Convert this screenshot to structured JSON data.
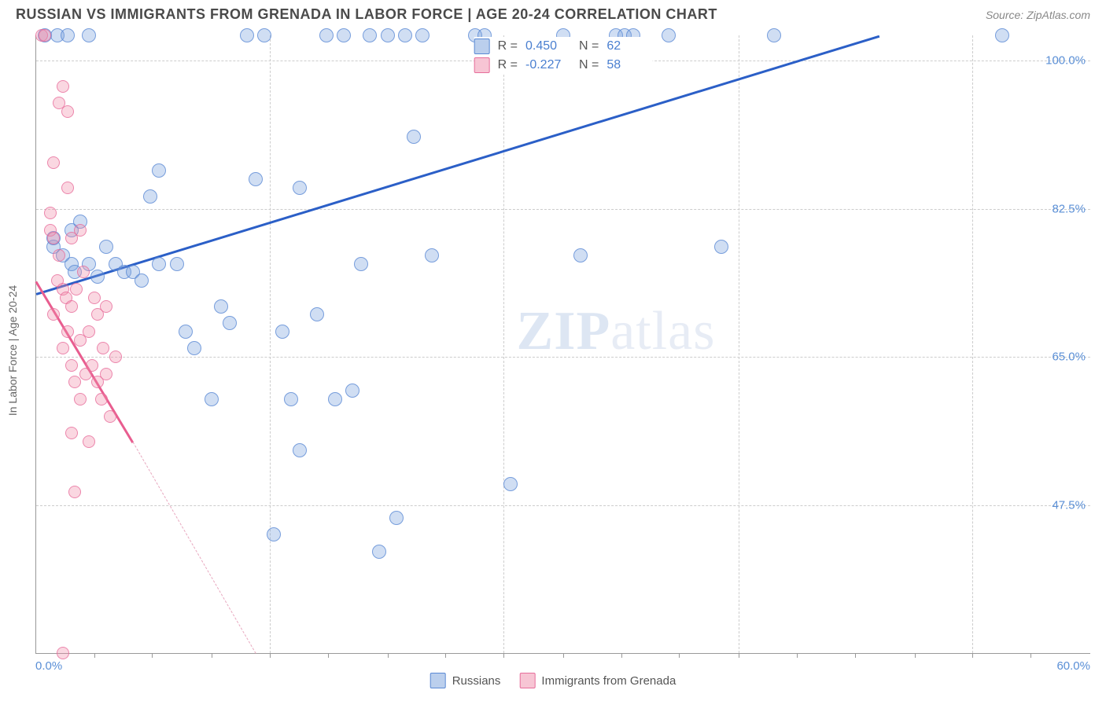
{
  "title": "RUSSIAN VS IMMIGRANTS FROM GRENADA IN LABOR FORCE | AGE 20-24 CORRELATION CHART",
  "source": "Source: ZipAtlas.com",
  "watermark_zip": "ZIP",
  "watermark_atlas": "atlas",
  "chart": {
    "type": "scatter",
    "background_color": "#ffffff",
    "grid_color": "#cccccc",
    "border_color": "#999999",
    "xlim": [
      0,
      60
    ],
    "ylim": [
      30,
      103
    ],
    "x_axis_label_left": "0.0%",
    "x_axis_label_right": "60.0%",
    "y_axis_title": "In Labor Force | Age 20-24",
    "y_ticks": [
      {
        "value": 47.5,
        "label": "47.5%"
      },
      {
        "value": 65.0,
        "label": "65.0%"
      },
      {
        "value": 82.5,
        "label": "82.5%"
      },
      {
        "value": 100.0,
        "label": "100.0%"
      }
    ],
    "x_gridlines": [
      13.3,
      26.6,
      40.0,
      53.3
    ],
    "x_ticks_minor": [
      3.3,
      6.6,
      10,
      16.6,
      20,
      23.3,
      30,
      33.3,
      36.6,
      43.3,
      46.6,
      50,
      56.6
    ],
    "legend_top": {
      "r_label": "R =",
      "n_label": "N =",
      "rows": [
        {
          "swatch": "blue",
          "r": "0.450",
          "n": "62"
        },
        {
          "swatch": "pink",
          "r": "-0.227",
          "n": "58"
        }
      ]
    },
    "legend_bottom": [
      {
        "swatch": "blue",
        "label": "Russians"
      },
      {
        "swatch": "pink",
        "label": "Immigrants from Grenada"
      }
    ],
    "series": [
      {
        "name": "Russians",
        "color": "#5a8fd6",
        "marker_border": "#4a7fd0",
        "marker_fill_opacity": 0.35,
        "marker_size": 18,
        "trend": {
          "x1": 0,
          "y1": 72.5,
          "x2": 48,
          "y2": 103,
          "color": "#2b5fc7",
          "width": 2.5,
          "dash": false
        },
        "points": [
          [
            0.5,
            103
          ],
          [
            1,
            78
          ],
          [
            1,
            79
          ],
          [
            1.2,
            103
          ],
          [
            1.5,
            77
          ],
          [
            1.8,
            103
          ],
          [
            2,
            76
          ],
          [
            2,
            80
          ],
          [
            2.2,
            75
          ],
          [
            2.5,
            81
          ],
          [
            3,
            76
          ],
          [
            3,
            103
          ],
          [
            3.5,
            74.5
          ],
          [
            4,
            78
          ],
          [
            4.5,
            76
          ],
          [
            5,
            75
          ],
          [
            5.5,
            75
          ],
          [
            6,
            74
          ],
          [
            6.5,
            84
          ],
          [
            7,
            76
          ],
          [
            7,
            87
          ],
          [
            8,
            76
          ],
          [
            8.5,
            68
          ],
          [
            9,
            66
          ],
          [
            10,
            60
          ],
          [
            10.5,
            71
          ],
          [
            11,
            69
          ],
          [
            12,
            103
          ],
          [
            12.5,
            86
          ],
          [
            13,
            103
          ],
          [
            13.5,
            44
          ],
          [
            14,
            68
          ],
          [
            14.5,
            60
          ],
          [
            15,
            85
          ],
          [
            15,
            54
          ],
          [
            16,
            70
          ],
          [
            16.5,
            103
          ],
          [
            17,
            60
          ],
          [
            17.5,
            103
          ],
          [
            18,
            61
          ],
          [
            18.5,
            76
          ],
          [
            19,
            103
          ],
          [
            19.5,
            42
          ],
          [
            20,
            103
          ],
          [
            20.5,
            46
          ],
          [
            21,
            103
          ],
          [
            21.5,
            91
          ],
          [
            22,
            103
          ],
          [
            22.5,
            77
          ],
          [
            25,
            103
          ],
          [
            25.5,
            103
          ],
          [
            27,
            50
          ],
          [
            30,
            103
          ],
          [
            31,
            77
          ],
          [
            33,
            103
          ],
          [
            33.5,
            103
          ],
          [
            34,
            103
          ],
          [
            36,
            103
          ],
          [
            39,
            78
          ],
          [
            42,
            103
          ],
          [
            55,
            103
          ]
        ]
      },
      {
        "name": "Immigrants from Grenada",
        "color": "#e85d8f",
        "marker_border": "#e06090",
        "marker_fill_opacity": 0.35,
        "marker_size": 16,
        "trend": {
          "x1": 0,
          "y1": 74,
          "x2": 5.5,
          "y2": 55,
          "color": "#e85d8f",
          "width": 2.5,
          "dash": false
        },
        "trend_extrapolation": {
          "x1": 5.5,
          "y1": 55,
          "x2": 12.5,
          "y2": 30,
          "color": "#e8a8bf",
          "dash": true
        },
        "points": [
          [
            0.3,
            103
          ],
          [
            0.5,
            103
          ],
          [
            0.8,
            80
          ],
          [
            0.8,
            82
          ],
          [
            1,
            79
          ],
          [
            1,
            88
          ],
          [
            1,
            70
          ],
          [
            1.2,
            74
          ],
          [
            1.3,
            77
          ],
          [
            1.3,
            95
          ],
          [
            1.5,
            97
          ],
          [
            1.5,
            73
          ],
          [
            1.5,
            66
          ],
          [
            1.5,
            30
          ],
          [
            1.7,
            72
          ],
          [
            1.8,
            94
          ],
          [
            1.8,
            68
          ],
          [
            1.8,
            85
          ],
          [
            2,
            79
          ],
          [
            2,
            71
          ],
          [
            2,
            64
          ],
          [
            2,
            56
          ],
          [
            2.2,
            62
          ],
          [
            2.2,
            49
          ],
          [
            2.3,
            73
          ],
          [
            2.5,
            80
          ],
          [
            2.5,
            67
          ],
          [
            2.5,
            60
          ],
          [
            2.7,
            75
          ],
          [
            2.8,
            63
          ],
          [
            3,
            68
          ],
          [
            3,
            55
          ],
          [
            3.2,
            64
          ],
          [
            3.3,
            72
          ],
          [
            3.5,
            62
          ],
          [
            3.5,
            70
          ],
          [
            3.7,
            60
          ],
          [
            3.8,
            66
          ],
          [
            4,
            63
          ],
          [
            4,
            71
          ],
          [
            4.2,
            58
          ],
          [
            4.5,
            65
          ]
        ]
      }
    ]
  }
}
